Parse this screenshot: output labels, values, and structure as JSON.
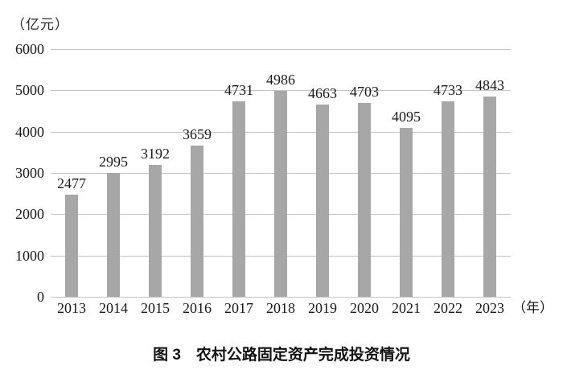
{
  "chart_data": {
    "type": "bar",
    "title": "图 3　农村公路固定资产完成投资情况",
    "y_unit_label": "（亿元）",
    "x_unit_label": "（年）",
    "categories": [
      "2013",
      "2014",
      "2015",
      "2016",
      "2017",
      "2018",
      "2019",
      "2020",
      "2021",
      "2022",
      "2023"
    ],
    "values": [
      2477,
      2995,
      3192,
      3659,
      4731,
      4986,
      4663,
      4703,
      4095,
      4733,
      4843
    ],
    "y_ticks": [
      0,
      1000,
      2000,
      3000,
      4000,
      5000,
      6000
    ],
    "ylim": [
      0,
      6000
    ],
    "grid": true,
    "legend": "none",
    "bar_color": "#a7a7a7",
    "gridline_color": "#c5c5c5"
  }
}
